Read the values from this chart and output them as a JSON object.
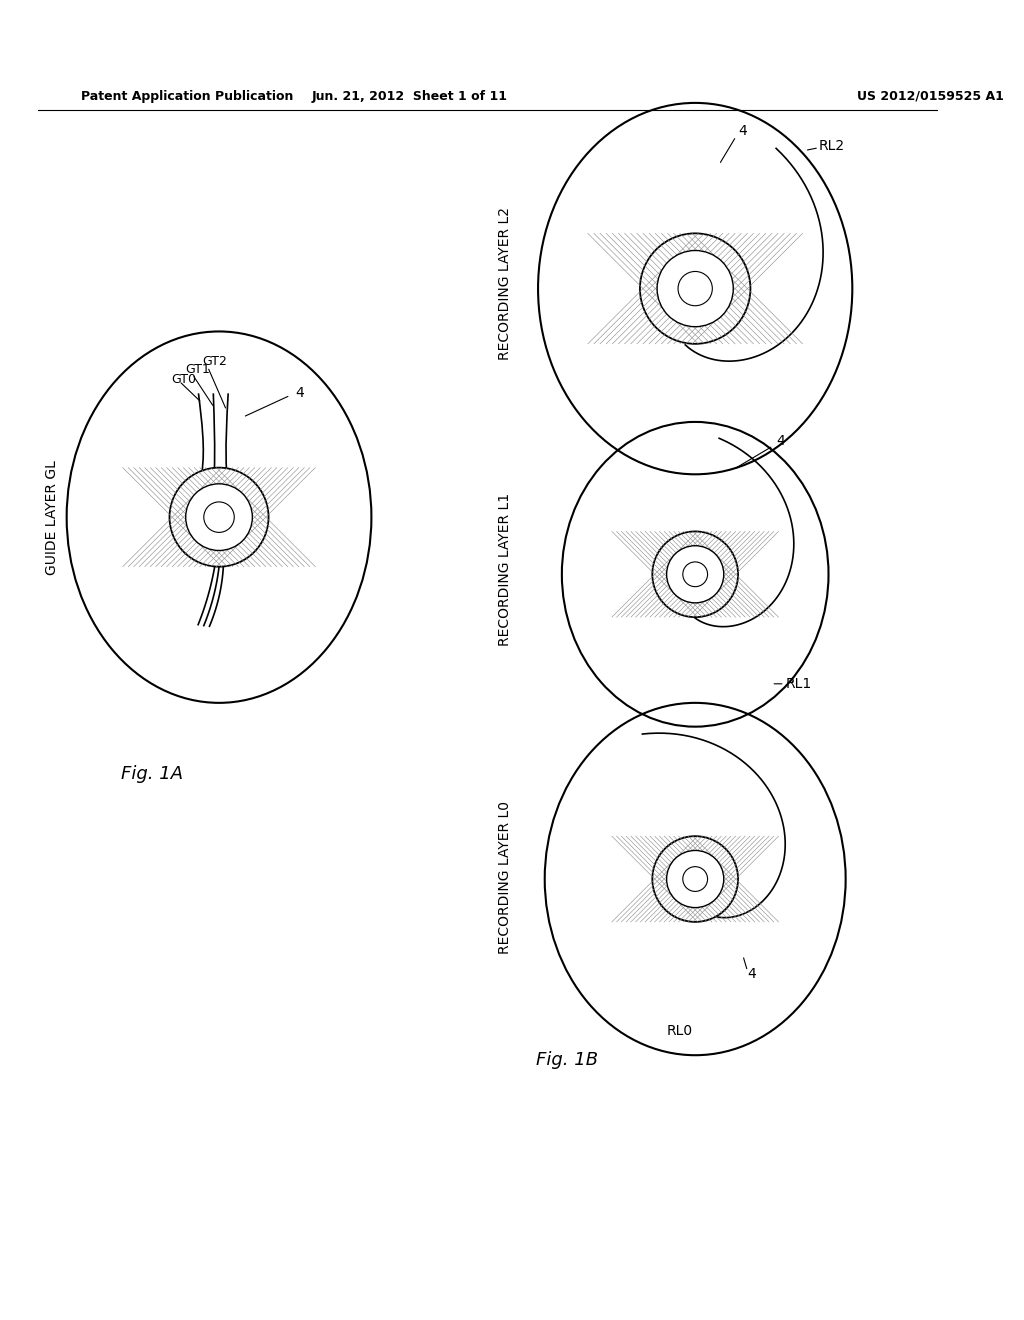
{
  "bg_color": "#ffffff",
  "header_left": "Patent Application Publication",
  "header_mid": "Jun. 21, 2012  Sheet 1 of 11",
  "header_right": "US 2012/0159525 A1",
  "fig1a_label": "Fig. 1A",
  "fig1b_label": "Fig. 1B",
  "guide_layer_label": "GUIDE LAYER GL",
  "rec_layer_l0_label": "RECORDING LAYER L0",
  "rec_layer_l1_label": "RECORDING LAYER L1",
  "rec_layer_l2_label": "RECORDING LAYER L2",
  "gt_labels": [
    "GT0",
    "GT1",
    "GT2"
  ],
  "label_4": "4",
  "label_rl0": "RL0",
  "label_rl1": "RL1",
  "label_rl2": "RL2",
  "line_color": "#000000",
  "hatch_color": "#666666"
}
